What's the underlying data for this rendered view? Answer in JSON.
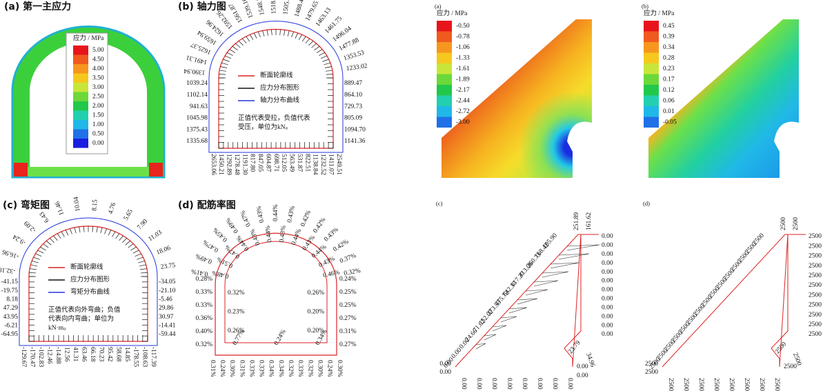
{
  "panels": {
    "a": {
      "title": "(a) 第一主应力",
      "legend_title": "应力 / MPa",
      "legend": [
        "5.00",
        "4.50",
        "4.00",
        "3.50",
        "3.00",
        "2.50",
        "2.00",
        "1.50",
        "1.00",
        "0.50",
        "0.00"
      ]
    },
    "b": {
      "title": "(b) 轴力图",
      "top": [
        "1390.94",
        "1491.31",
        "1625.37",
        "1659.94",
        "1624.96",
        "1592.26",
        "1561.87",
        "1539.16",
        "1548.70",
        "1518.30",
        "1505.52",
        "1488.42",
        "1479.65",
        "1463.13",
        "1461.75",
        "1496.04",
        "1477.88",
        "1353.53",
        "1233.02"
      ],
      "left": [
        "1039.24",
        "1102.14",
        "941.63",
        "1045.98",
        "1375.43",
        "1335.68"
      ],
      "right": [
        "889.47",
        "864.10",
        "729.73",
        "805.09",
        "1094.70",
        "1141.36"
      ],
      "bottom": [
        "2653.06",
        "1450.21",
        "1292.89",
        "1278.48",
        "1191.30",
        "817.80",
        "847.05",
        "604.87",
        "698.71",
        "512.05",
        "563.49",
        "531.87",
        "822.51",
        "1138.84",
        "1232.52",
        "1411.07",
        "2549.51"
      ],
      "legend": [
        "断面轮廓线",
        "应力分布图形",
        "轴力分布曲线"
      ],
      "note": [
        "正值代表受拉，负值代表",
        "受压，单位为kN。"
      ]
    },
    "c": {
      "title": "(c) 弯矩图",
      "top": [
        "-32.18",
        "-16.96",
        "-9.24",
        "-2.09",
        "6.43",
        "11.46",
        "10.04",
        "8.15",
        "4.76",
        "5.65",
        "7.90",
        "11.03",
        "18.06",
        "23.75"
      ],
      "left": [
        "-41.15",
        "-19.75",
        "8.18",
        "47.29",
        "43.95",
        "-6.21",
        "-64.95"
      ],
      "right": [
        "-34.05",
        "-21.10",
        "-5.46",
        "29.86",
        "30.97",
        "-14.41",
        "-59.44"
      ],
      "bottom": [
        "-129.67",
        "-170.47",
        "-102.83",
        "-12.46",
        "-14.88",
        "12.56",
        "41.31",
        "63.46",
        "66.18",
        "70.23",
        "95.42",
        "58.68",
        "14.85",
        "-178.55",
        "-108.63",
        "-117.39"
      ],
      "legend": [
        "断面轮廓线",
        "应力分布图形",
        "弯矩分布曲线"
      ],
      "note": [
        "正值代表向外弯曲；负值",
        "代表向内弯曲；单位为",
        "kN·m。"
      ]
    },
    "d": {
      "title": "(d) 配筋率图",
      "top_outer": [
        "0.41%",
        "0.49%",
        "0.47%",
        "0.45%",
        "0.49%",
        "0.47%",
        "0.43%",
        "0.44%",
        "0.43%",
        "0.42%",
        "0.42%",
        "0.43%",
        "0.42%",
        "0.37%",
        "0.32%"
      ],
      "top_inner": [
        "0.48%",
        "0.51%",
        "0.47%",
        "0.44%",
        "0.43%",
        "0.44%",
        "0.43%",
        "0.44%",
        "0.43%",
        "0.44%",
        "0.43%",
        "0.46%"
      ],
      "left_outer": [
        "0.28%",
        "0.33%",
        "0.33%",
        "0.36%",
        "0.40%",
        "0.32%"
      ],
      "left_inner": [
        "0.32%",
        "0.23%",
        "0.26%"
      ],
      "right_inner": [
        "0.26%",
        "0.20%",
        "0.20%"
      ],
      "right_outer": [
        "0.24%",
        "0.25%",
        "0.25%",
        "0.27%",
        "0.31%",
        "0.27%"
      ],
      "bottom": [
        "0.31%",
        "0.24%",
        "0.30%",
        "0.31%",
        "0.33%",
        "0.33%",
        "0.34%",
        "0.34%",
        "0.32%",
        "0.33%",
        "0.32%",
        "0.30%",
        "0.24%",
        "0.30%"
      ],
      "bottom_inner": [
        "0.77%",
        "0.24%",
        "0.34%"
      ]
    },
    "e": {
      "title": "(a)",
      "legend_title": "应力 / MPa",
      "legend": [
        "-0.50",
        "-0.78",
        "-1.06",
        "-1.33",
        "-1.61",
        "-1.89",
        "-2.17",
        "-2.44",
        "-2.72",
        "-3.00"
      ]
    },
    "f": {
      "title": "(b)",
      "legend_title": "应力 / MPa",
      "legend": [
        "0.45",
        "0.39",
        "0.34",
        "0.28",
        "0.23",
        "0.17",
        "0.12",
        "0.06",
        "0.01",
        "-0.05"
      ]
    },
    "g": {
      "title": "(c)",
      "diag": [
        "0.00",
        "0.00",
        "0.00",
        "24.66",
        "71.62",
        "152.02",
        "373.53",
        "475.72",
        "642.37",
        "617.27",
        "413.06",
        "260.73",
        "168.42",
        "105.90"
      ],
      "top": [
        "251.89",
        "161.62"
      ],
      "right": [
        "0.00",
        "0.00",
        "0.00",
        "0.00",
        "0.00",
        "0.00",
        "0.00",
        "0.00",
        "0.00",
        "0.00",
        "0.00",
        "0.00"
      ],
      "mid": [
        "23.79",
        "34.96",
        "0.00",
        "0.00"
      ],
      "left": [
        "0.00",
        "0.00"
      ],
      "bottom": [
        "0.00",
        "0.00",
        "0.00",
        "0.00",
        "0.00",
        "0.00",
        "0.00",
        "0.00"
      ]
    },
    "h": {
      "title": "(d)",
      "diag": [
        "2500",
        "2500",
        "2500",
        "2500",
        "2500",
        "2500",
        "2500",
        "2500",
        "2500",
        "2500",
        "2500",
        "2500",
        "2500",
        "2500",
        "2500"
      ],
      "top": [
        "2500",
        "2500"
      ],
      "right": [
        "2500",
        "2500",
        "2500",
        "2500",
        "2500",
        "2500",
        "2500",
        "2500",
        "2500",
        "2500",
        "2500"
      ],
      "mid": [
        "2500",
        "2500",
        "2500"
      ],
      "left": [
        "2500",
        "2500"
      ],
      "bottom": [
        "2500",
        "2500",
        "2500",
        "2500",
        "2500",
        "2500",
        "2500",
        "2500"
      ]
    }
  }
}
